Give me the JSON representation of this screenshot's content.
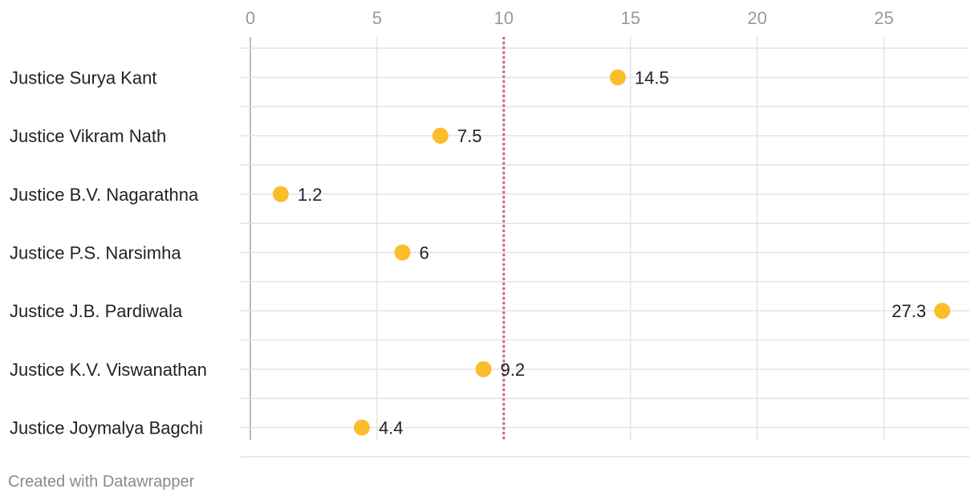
{
  "chart_data": {
    "type": "dot",
    "categories": [
      "Justice Surya Kant",
      "Justice Vikram Nath",
      "Justice B.V. Nagarathna",
      "Justice P.S. Narsimha",
      "Justice J.B. Pardiwala",
      "Justice K.V. Viswanathan",
      "Justice Joymalya Bagchi"
    ],
    "values": [
      14.5,
      7.5,
      1.2,
      6,
      27.3,
      9.2,
      4.4
    ],
    "value_labels": [
      "14.5",
      "7.5",
      "1.2",
      "6",
      "27.3",
      "9.2",
      "4.4"
    ],
    "x_ticks": [
      0,
      5,
      10,
      15,
      20,
      25
    ],
    "xlim": [
      0,
      28
    ],
    "reference_line": 10,
    "grid": true,
    "colors": {
      "dot": "#fbbd2a",
      "reference_line": "#d4608a",
      "grid": "#e3e3e3",
      "axis": "#bdbdbd"
    }
  },
  "footer": {
    "credit": "Created with Datawrapper"
  }
}
